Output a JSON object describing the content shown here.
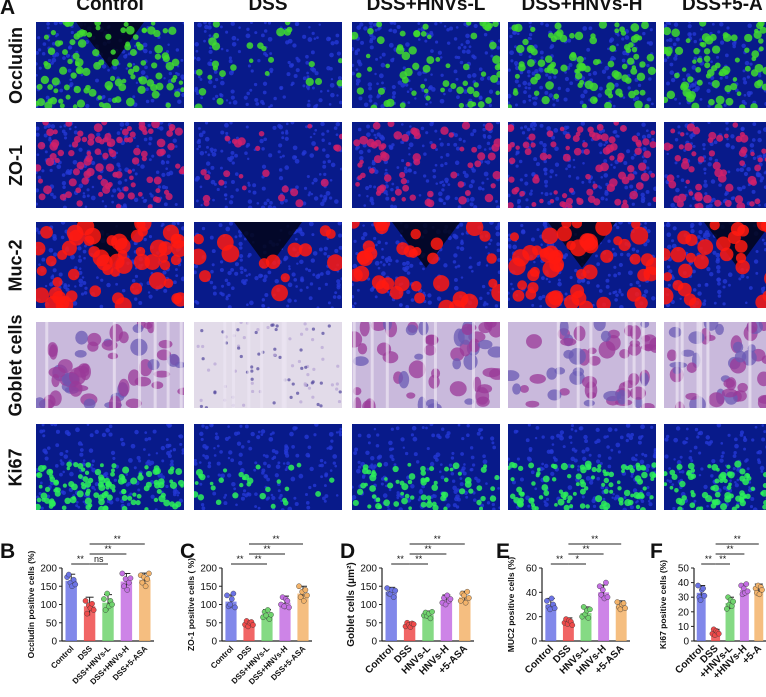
{
  "figure": {
    "panel_a_label": "A",
    "columns": [
      "Control",
      "DSS",
      "DSS+HNVs-L",
      "DSS+HNVs-H",
      "DSS+5-A"
    ],
    "rows": [
      {
        "label": "Occludin",
        "style": "occludin"
      },
      {
        "label": "ZO-1",
        "style": "zo1"
      },
      {
        "label": "Muc-2",
        "style": "muc2"
      },
      {
        "label": "Goblet cells",
        "style": "goblet"
      },
      {
        "label": "Ki67",
        "style": "ki67"
      }
    ]
  },
  "chart_data": [
    {
      "panel": "B",
      "type": "bar",
      "categories": [
        "Control",
        "DSS",
        "DSS+HNVs-L",
        "DSS+HNVs-H",
        "DSS+5-ASA"
      ],
      "tick_labels": [
        "Control",
        "DSS",
        "DSS+HNVs-L",
        "DSS+HNVs-H",
        "DSS+5-ASA"
      ],
      "values": [
        165,
        95,
        105,
        163,
        168
      ],
      "errors": [
        18,
        25,
        22,
        22,
        18
      ],
      "points": [
        [
          175,
          182,
          160,
          150,
          168,
          155
        ],
        [
          110,
          75,
          98,
          90,
          102,
          85
        ],
        [
          115,
          85,
          130,
          95,
          110,
          100
        ],
        [
          185,
          150,
          170,
          140,
          160,
          172
        ],
        [
          180,
          160,
          175,
          150,
          170,
          185
        ]
      ],
      "ylabel": "Occludin positive cells (%)",
      "ylim": [
        0,
        200
      ],
      "yticks": [
        0,
        50,
        100,
        150,
        200
      ],
      "colors": [
        "#6b73e6",
        "#ef4a4a",
        "#70d46e",
        "#c46fe3",
        "#f3b36a"
      ],
      "annotations": [
        {
          "from": 0,
          "to": 1,
          "level": 0,
          "text": "**"
        },
        {
          "from": 1,
          "to": 2,
          "level": 0,
          "text": "ns"
        },
        {
          "from": 1,
          "to": 3,
          "level": 1,
          "text": "**"
        },
        {
          "from": 1,
          "to": 4,
          "level": 2,
          "text": "**"
        }
      ]
    },
    {
      "panel": "C",
      "type": "bar",
      "categories": [
        "Control",
        "DSS",
        "DSS+HNVs-L",
        "DSS+HNVs-H",
        "DSS+5-ASA"
      ],
      "tick_labels": [
        "Control",
        "DSS",
        "DSS+HNVs-L",
        "DSS+HNVs-H",
        "DSS+5-ASA"
      ],
      "values": [
        108,
        48,
        72,
        105,
        130
      ],
      "errors": [
        18,
        8,
        14,
        18,
        20
      ],
      "points": [
        [
          125,
          95,
          100,
          115,
          130,
          92
        ],
        [
          45,
          55,
          40,
          50,
          52,
          44
        ],
        [
          65,
          80,
          70,
          85,
          60,
          72
        ],
        [
          100,
          120,
          95,
          115,
          110,
          92
        ],
        [
          150,
          120,
          135,
          110,
          140,
          125
        ]
      ],
      "ylabel": "ZO-1 positive cells ( %)",
      "ylim": [
        0,
        200
      ],
      "yticks": [
        0,
        50,
        100,
        150,
        200
      ],
      "colors": [
        "#6b73e6",
        "#ef4a4a",
        "#70d46e",
        "#c46fe3",
        "#f3b36a"
      ],
      "annotations": [
        {
          "from": 0,
          "to": 1,
          "level": 0,
          "text": "**"
        },
        {
          "from": 1,
          "to": 2,
          "level": 0,
          "text": "**"
        },
        {
          "from": 1,
          "to": 3,
          "level": 1,
          "text": "**"
        },
        {
          "from": 1,
          "to": 4,
          "level": 2,
          "text": "**"
        }
      ]
    },
    {
      "panel": "D",
      "type": "bar",
      "categories": [
        "Control",
        "DSS",
        "DSS+HNVs-L",
        "DSS+HNVs-H",
        "DSS+5-ASA"
      ],
      "tick_labels": [
        "Control",
        "DSS",
        "HNVs-L",
        "HNVs-H",
        "+5-ASA"
      ],
      "values": [
        135,
        45,
        72,
        112,
        120
      ],
      "errors": [
        12,
        7,
        10,
        14,
        16
      ],
      "points": [
        [
          145,
          130,
          128,
          140,
          120,
          138
        ],
        [
          40,
          50,
          44,
          38,
          48,
          46
        ],
        [
          70,
          78,
          68,
          75,
          62,
          80
        ],
        [
          105,
          118,
          100,
          125,
          110,
          115
        ],
        [
          110,
          130,
          125,
          105,
          135,
          118
        ]
      ],
      "ylabel": "Goblet cells (μm²)",
      "ylim": [
        0,
        200
      ],
      "yticks": [
        0,
        50,
        100,
        150,
        200
      ],
      "colors": [
        "#6b73e6",
        "#ef4a4a",
        "#70d46e",
        "#c46fe3",
        "#f3b36a"
      ],
      "annotations": [
        {
          "from": 0,
          "to": 1,
          "level": 0,
          "text": "**"
        },
        {
          "from": 1,
          "to": 2,
          "level": 0,
          "text": "**"
        },
        {
          "from": 1,
          "to": 3,
          "level": 1,
          "text": "**"
        },
        {
          "from": 1,
          "to": 4,
          "level": 2,
          "text": "**"
        }
      ]
    },
    {
      "panel": "E",
      "type": "bar",
      "categories": [
        "Control",
        "DSS",
        "DSS+HNVs-L",
        "DSS+HNVs-H",
        "DSS+5-ASA"
      ],
      "tick_labels": [
        "Control",
        "DSS",
        "HNVs-L",
        "HNVs-H",
        "+5-ASA"
      ],
      "values": [
        30,
        16,
        23,
        40,
        29
      ],
      "errors": [
        5,
        3,
        5,
        6,
        4
      ],
      "points": [
        [
          33,
          28,
          26,
          35,
          30,
          27
        ],
        [
          15,
          18,
          14,
          17,
          16,
          13
        ],
        [
          20,
          28,
          22,
          25,
          19,
          26
        ],
        [
          45,
          38,
          42,
          35,
          48,
          36
        ],
        [
          32,
          28,
          26,
          30,
          31,
          27
        ]
      ],
      "ylabel": "MUC2 positive cells (%)",
      "ylim": [
        0,
        60
      ],
      "yticks": [
        0,
        20,
        40,
        60
      ],
      "colors": [
        "#6b73e6",
        "#ef4a4a",
        "#70d46e",
        "#c46fe3",
        "#f3b36a"
      ],
      "annotations": [
        {
          "from": 0,
          "to": 1,
          "level": 0,
          "text": "**"
        },
        {
          "from": 1,
          "to": 2,
          "level": 0,
          "text": "*"
        },
        {
          "from": 1,
          "to": 3,
          "level": 1,
          "text": "**"
        },
        {
          "from": 1,
          "to": 4,
          "level": 2,
          "text": "**"
        }
      ]
    },
    {
      "panel": "F",
      "type": "bar",
      "categories": [
        "Control",
        "DSS",
        "DSS+HNVs-L",
        "DSS+HNVs-H",
        "DSS+5-ASA"
      ],
      "tick_labels": [
        "Control",
        "DSS",
        "+HNVs-L",
        "+HNVs-H",
        "+5-A"
      ],
      "values": [
        33,
        6,
        26,
        35,
        35
      ],
      "errors": [
        5,
        2,
        4,
        4,
        4
      ],
      "points": [
        [
          38,
          30,
          28,
          35,
          36,
          31
        ],
        [
          5,
          8,
          4,
          7,
          6,
          5
        ],
        [
          22,
          30,
          25,
          28,
          24,
          27
        ],
        [
          38,
          32,
          36,
          33,
          39,
          34
        ],
        [
          36,
          33,
          38,
          32,
          37,
          35
        ]
      ],
      "ylabel": "Ki67 positive cells (%)",
      "ylim": [
        0,
        50
      ],
      "yticks": [
        0,
        10,
        20,
        30,
        40,
        50
      ],
      "colors": [
        "#6b73e6",
        "#ef4a4a",
        "#70d46e",
        "#c46fe3",
        "#f3b36a"
      ],
      "annotations": [
        {
          "from": 0,
          "to": 1,
          "level": 0,
          "text": "**"
        },
        {
          "from": 1,
          "to": 2,
          "level": 0,
          "text": "**"
        },
        {
          "from": 1,
          "to": 3,
          "level": 1,
          "text": "**"
        },
        {
          "from": 1,
          "to": 4,
          "level": 2,
          "text": "**"
        }
      ]
    }
  ]
}
